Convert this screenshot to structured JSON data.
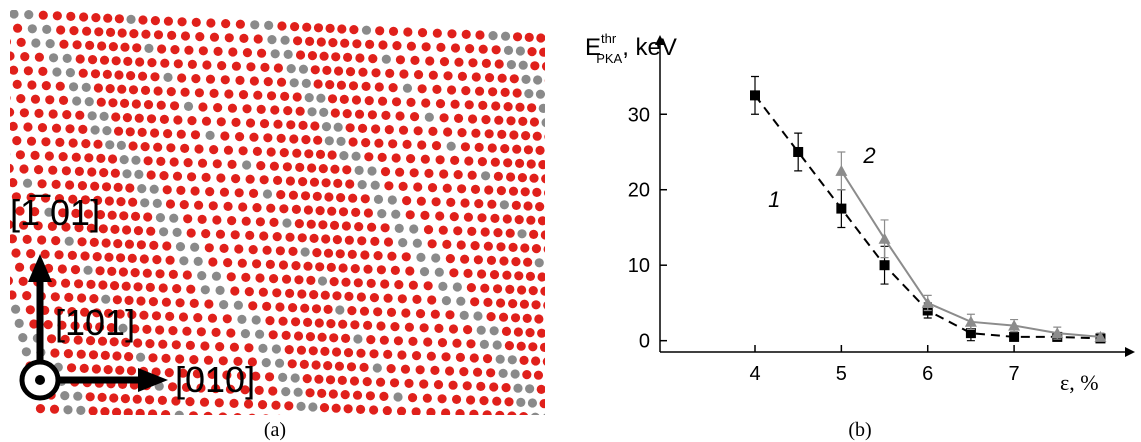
{
  "panel_a": {
    "caption": "(a)",
    "labels": [
      "[1̅ 01]",
      "[101]",
      "[010]"
    ]
  },
  "chart_data": {
    "type": "line",
    "caption": "(b)",
    "x_label": "ε, %",
    "y_label": {
      "base": "E",
      "sup": "thr",
      "sub": "PKA",
      "unit": ", keV"
    },
    "xlim": [
      2.9,
      8.4
    ],
    "xticks": [
      4,
      5,
      6,
      7
    ],
    "ylim": [
      -1.5,
      40.5
    ],
    "yticks": [
      0,
      10,
      20,
      30
    ],
    "series": [
      {
        "name": "1",
        "color": "#000000",
        "dash": true,
        "marker": "square",
        "x": [
          4,
          4.5,
          5,
          5.5,
          6,
          6.5,
          7,
          7.5,
          8
        ],
        "values": [
          32.5,
          25,
          17.5,
          10,
          4,
          1,
          0.5,
          0.5,
          0.3
        ],
        "errors": [
          2.5,
          2.5,
          2.5,
          2.5,
          1,
          1,
          0.3,
          0.5,
          0.3
        ]
      },
      {
        "name": "2",
        "color": "#8c8c8c",
        "dash": false,
        "marker": "triangle",
        "x": [
          5,
          5.5,
          6,
          6.5,
          7,
          7.5,
          8
        ],
        "values": [
          22.5,
          13.5,
          5,
          2.5,
          2,
          1,
          0.5
        ],
        "errors": [
          2.5,
          2.5,
          1,
          1,
          0.8,
          0.8,
          0.5
        ]
      }
    ]
  }
}
